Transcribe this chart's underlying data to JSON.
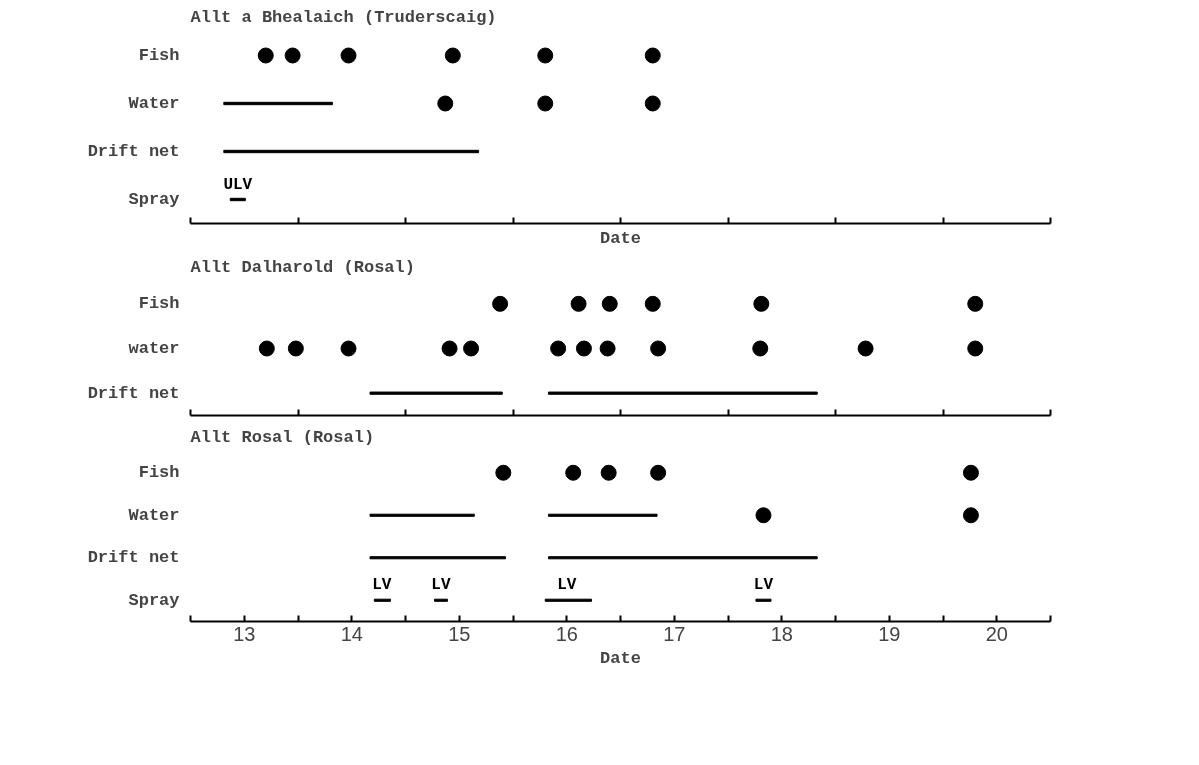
{
  "chart_data": [
    {
      "type": "scatter",
      "orientation": "horizontal",
      "title": "Allt a Bhealaich (Truderscaig)",
      "xlabel": "Date",
      "categories": [
        "Fish",
        "Water",
        "Drift net",
        "Spray"
      ],
      "xlim": [
        13,
        21
      ],
      "xticks": [
        {
          "value": 13,
          "label": null
        },
        {
          "value": 14,
          "label": null
        },
        {
          "value": 15,
          "label": null
        },
        {
          "value": 16,
          "label": null
        },
        {
          "value": 17,
          "label": null
        },
        {
          "value": 18,
          "label": null
        },
        {
          "value": 19,
          "label": null
        },
        {
          "value": 20,
          "label": null
        },
        {
          "value": 21,
          "label": null
        }
      ],
      "tick_labels": "y",
      "marker": "circle",
      "series": [
        {
          "color": "#000000",
          "x": [
            "Fish",
            "Fish",
            "Fish",
            "Fish",
            "Fish",
            "Fish"
          ],
          "values": [
            13.7,
            13.95,
            14.47,
            15.44,
            16.3,
            17.3
          ]
        },
        {
          "color": "#000000",
          "x": [
            "Water",
            "Water",
            "Water"
          ],
          "values": [
            15.37,
            16.3,
            17.3
          ]
        },
        {
          "type": "bar",
          "color": "#000000",
          "x": [
            "Water",
            "Drift net",
            "Spray"
          ],
          "base": [
            13.31,
            13.31,
            13.37
          ],
          "values": [
            1.01,
            2.37,
            0.14
          ]
        }
      ],
      "annotations": [
        {
          "text": "ULV",
          "x": 13.44,
          "y": "Spray"
        }
      ]
    },
    {
      "type": "scatter",
      "orientation": "horizontal",
      "title": "Allt Dalharold (Rosal)",
      "categories": [
        "Fish",
        "water",
        "Drift net"
      ],
      "xlim": [
        13,
        21
      ],
      "xticks": [
        {
          "value": 13,
          "label": null
        },
        {
          "value": 14,
          "label": null
        },
        {
          "value": 15,
          "label": null
        },
        {
          "value": 16,
          "label": null
        },
        {
          "value": 17,
          "label": null
        },
        {
          "value": 18,
          "label": null
        },
        {
          "value": 19,
          "label": null
        },
        {
          "value": 20,
          "label": null
        },
        {
          "value": 21,
          "label": null
        }
      ],
      "tick_labels": "y",
      "marker": "circle",
      "series": [
        {
          "color": "#000000",
          "x": [
            "Fish",
            "Fish",
            "Fish",
            "Fish",
            "Fish",
            "Fish"
          ],
          "values": [
            15.88,
            16.61,
            16.9,
            17.3,
            18.31,
            20.3
          ]
        },
        {
          "color": "#000000",
          "x": [
            "water",
            "water",
            "water",
            "water",
            "water",
            "water",
            "water",
            "water",
            "water",
            "water",
            "water",
            "water"
          ],
          "values": [
            13.71,
            13.98,
            14.47,
            15.41,
            15.61,
            16.42,
            16.66,
            16.88,
            17.35,
            18.3,
            19.28,
            20.3
          ]
        },
        {
          "type": "bar",
          "color": "#000000",
          "x": [
            "Drift net",
            "Drift net"
          ],
          "base": [
            14.67,
            16.33
          ],
          "values": [
            1.23,
            2.5
          ]
        }
      ]
    },
    {
      "type": "scatter",
      "orientation": "horizontal",
      "title": "Allt Rosal (Rosal)",
      "xlabel": "Date",
      "categories": [
        "Fish",
        "Water",
        "Drift net",
        "Spray"
      ],
      "xlim": [
        13,
        21
      ],
      "xticks": [
        {
          "value": 13,
          "label": null
        },
        {
          "value": 13.5,
          "label": "13"
        },
        {
          "value": 14,
          "label": null
        },
        {
          "value": 14.5,
          "label": "14"
        },
        {
          "value": 15,
          "label": null
        },
        {
          "value": 15.5,
          "label": "15"
        },
        {
          "value": 16,
          "label": null
        },
        {
          "value": 16.5,
          "label": "16"
        },
        {
          "value": 17,
          "label": null
        },
        {
          "value": 17.5,
          "label": "17"
        },
        {
          "value": 18,
          "label": null
        },
        {
          "value": 18.5,
          "label": "18"
        },
        {
          "value": 19,
          "label": null
        },
        {
          "value": 19.5,
          "label": "19"
        },
        {
          "value": 20,
          "label": null
        },
        {
          "value": 20.5,
          "label": "20"
        },
        {
          "value": 21,
          "label": null
        }
      ],
      "marker": "circle",
      "series": [
        {
          "color": "#000000",
          "x": [
            "Fish",
            "Fish",
            "Fish",
            "Fish",
            "Fish"
          ],
          "values": [
            15.91,
            16.56,
            16.89,
            17.35,
            20.26
          ]
        },
        {
          "color": "#000000",
          "x": [
            "Water",
            "Water"
          ],
          "values": [
            18.33,
            20.26
          ]
        },
        {
          "type": "bar",
          "color": "#000000",
          "x": [
            "Water",
            "Water",
            "Drift net",
            "Drift net",
            "Spray",
            "Spray",
            "Spray",
            "Spray"
          ],
          "base": [
            14.67,
            16.33,
            14.67,
            16.33,
            14.71,
            15.27,
            16.3,
            18.26
          ],
          "values": [
            0.97,
            1.01,
            1.26,
            2.5,
            0.15,
            0.12,
            0.43,
            0.14
          ]
        }
      ],
      "annotations": [
        {
          "text": "LV",
          "x": 14.78,
          "y": "Spray"
        },
        {
          "text": "LV",
          "x": 15.33,
          "y": "Spray"
        },
        {
          "text": "LV",
          "x": 16.5,
          "y": "Spray"
        },
        {
          "text": "LV",
          "x": 18.33,
          "y": "Spray"
        }
      ]
    }
  ]
}
